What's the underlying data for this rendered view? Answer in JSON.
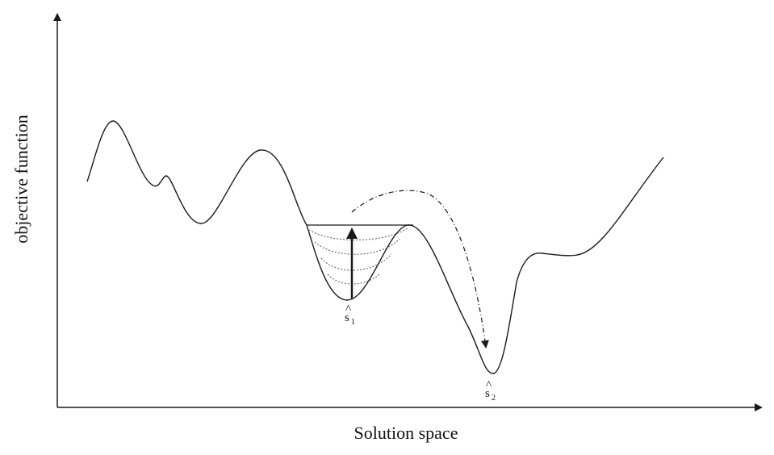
{
  "diagram": {
    "x_axis_label": "Solution space",
    "y_axis_label": "objective function",
    "points": [
      {
        "label": "s",
        "subscript": "1",
        "hat": "^"
      },
      {
        "label": "s",
        "subscript": "2",
        "hat": "^"
      }
    ],
    "colors": {
      "line": "#1a1a1a",
      "background": "#ffffff"
    }
  }
}
